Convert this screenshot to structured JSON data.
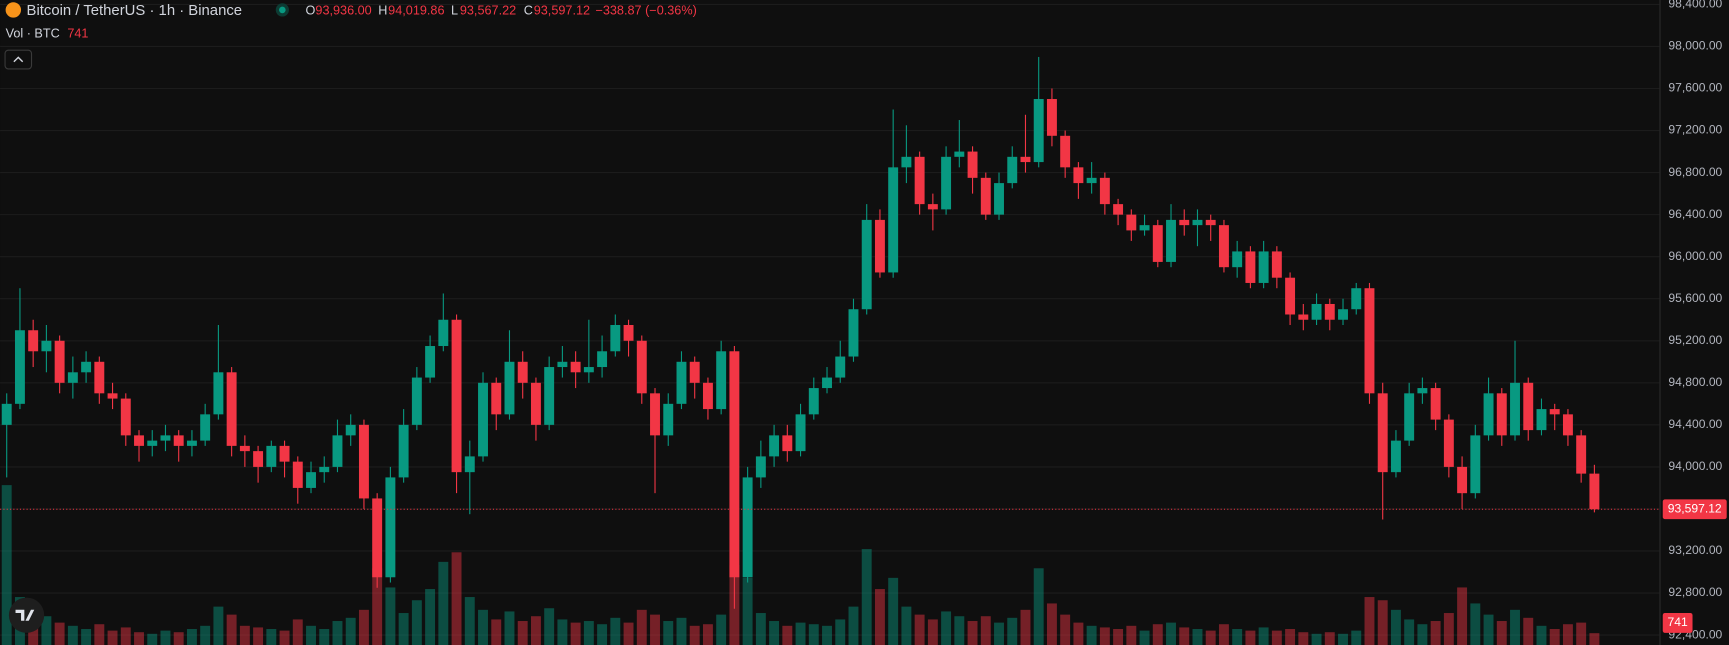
{
  "header": {
    "symbol": "Bitcoin / TetherUS · 1h · Binance",
    "ohlc": [
      {
        "key": "O",
        "value": "93,936.00"
      },
      {
        "key": "H",
        "value": "94,019.86"
      },
      {
        "key": "L",
        "value": "93,567.22"
      },
      {
        "key": "C",
        "value": "93,597.12"
      }
    ],
    "change": "−338.87 (−0.36%)",
    "volume_label": "Vol · BTC",
    "volume_value": "741"
  },
  "chart_data": {
    "type": "candlestick",
    "up_color": "#089981",
    "down_color": "#f23645",
    "grid": true,
    "ylim": [
      92400,
      98400
    ],
    "yticks": [
      {
        "value": 98400,
        "label": "98,400.00"
      },
      {
        "value": 98000,
        "label": "98,000.00"
      },
      {
        "value": 97600,
        "label": "97,600.00"
      },
      {
        "value": 97200,
        "label": "97,200.00"
      },
      {
        "value": 96800,
        "label": "96,800.00"
      },
      {
        "value": 96400,
        "label": "96,400.00"
      },
      {
        "value": 96000,
        "label": "96,000.00"
      },
      {
        "value": 95600,
        "label": "95,600.00"
      },
      {
        "value": 95200,
        "label": "95,200.00"
      },
      {
        "value": 94800,
        "label": "94,800.00"
      },
      {
        "value": 94400,
        "label": "94,400.00"
      },
      {
        "value": 94000,
        "label": "94,000.00"
      },
      {
        "value": 93600,
        "label": "93,600.00"
      },
      {
        "value": 93200,
        "label": "93,200.00"
      },
      {
        "value": 92800,
        "label": "92,800.00"
      },
      {
        "value": 92400,
        "label": "92,400.00"
      }
    ],
    "last_price_label": "93,597.12",
    "open": [
      94400,
      94600,
      95300,
      95100,
      95200,
      94800,
      94900,
      95000,
      94700,
      94650,
      94300,
      94200,
      94250,
      94300,
      94200,
      94250,
      94500,
      94900,
      94200,
      94150,
      94000,
      94200,
      94050,
      93800,
      93950,
      94000,
      94300,
      94400,
      93700,
      92950,
      93900,
      94400,
      94850,
      95150,
      95400,
      93950,
      94100,
      94800,
      94500,
      95000,
      94800,
      94400,
      94950,
      95000,
      94900,
      94950,
      95100,
      95350,
      95200,
      94700,
      94300,
      94600,
      95000,
      94800,
      94550,
      95100,
      92950,
      93900,
      94100,
      94300,
      94150,
      94500,
      94750,
      94850,
      95050,
      95500,
      96350,
      95850,
      96850,
      96950,
      96500,
      96450,
      96950,
      97000,
      96750,
      96400,
      96700,
      96950,
      96900,
      97500,
      97150,
      96850,
      96700,
      96750,
      96500,
      96400,
      96250,
      96300,
      95950,
      96350,
      96300,
      96350,
      96300,
      95900,
      96050,
      95750,
      96050,
      95800,
      95450,
      95400,
      95550,
      95400,
      95500,
      95700,
      94700,
      93950,
      94250,
      94700,
      94750,
      94450,
      94000,
      93750,
      94300,
      94700,
      94300,
      94800,
      94350,
      94550,
      94500,
      94300,
      93936
    ],
    "high": [
      94700,
      95700,
      95400,
      95350,
      95250,
      95050,
      95100,
      95050,
      94800,
      94700,
      94350,
      94350,
      94400,
      94350,
      94350,
      94600,
      95350,
      94950,
      94300,
      94200,
      94250,
      94250,
      94100,
      94050,
      94100,
      94450,
      94500,
      94450,
      93750,
      94000,
      94550,
      94950,
      95250,
      95650,
      95450,
      94250,
      94900,
      94850,
      95300,
      95100,
      94850,
      95050,
      95150,
      95100,
      95400,
      95250,
      95450,
      95400,
      95250,
      94750,
      94700,
      95100,
      95050,
      94850,
      95200,
      95150,
      94000,
      94250,
      94400,
      94400,
      94600,
      94850,
      94950,
      95200,
      95600,
      96500,
      96450,
      97400,
      97250,
      97000,
      96600,
      97050,
      97300,
      97050,
      96800,
      96800,
      97050,
      97350,
      97900,
      97600,
      97200,
      96900,
      96900,
      96800,
      96550,
      96450,
      96400,
      96350,
      96500,
      96450,
      96450,
      96400,
      96350,
      96150,
      96100,
      96150,
      96100,
      95850,
      95550,
      95650,
      95600,
      95600,
      95750,
      95750,
      94800,
      94350,
      94800,
      94850,
      94800,
      94500,
      94100,
      94400,
      94850,
      94750,
      95200,
      94850,
      94650,
      94600,
      94550,
      94350,
      94019.86
    ],
    "low": [
      93900,
      94550,
      94950,
      94900,
      94700,
      94650,
      94800,
      94600,
      94550,
      94200,
      94050,
      94100,
      94150,
      94050,
      94100,
      94200,
      94450,
      94100,
      94000,
      93850,
      93950,
      93900,
      93650,
      93750,
      93850,
      93950,
      94200,
      93600,
      92850,
      92900,
      93850,
      94350,
      94800,
      95100,
      93750,
      93550,
      94050,
      94350,
      94450,
      94650,
      94250,
      94350,
      94850,
      94750,
      94800,
      94850,
      95050,
      95050,
      94600,
      93750,
      94200,
      94550,
      94650,
      94450,
      94500,
      92650,
      92900,
      93800,
      94000,
      94050,
      94100,
      94450,
      94700,
      94800,
      95000,
      95450,
      95800,
      95800,
      96700,
      96400,
      96250,
      96400,
      96850,
      96600,
      96350,
      96350,
      96650,
      96800,
      96850,
      97050,
      96750,
      96550,
      96600,
      96400,
      96300,
      96150,
      96200,
      95900,
      95900,
      96200,
      96100,
      96150,
      95850,
      95800,
      95700,
      95700,
      95700,
      95350,
      95300,
      95350,
      95300,
      95350,
      95450,
      94600,
      93500,
      93900,
      94200,
      94600,
      94350,
      93900,
      93600,
      93700,
      94250,
      94200,
      94250,
      94250,
      94300,
      94350,
      94200,
      93850,
      93567.22
    ],
    "close": [
      94600,
      95300,
      95100,
      95200,
      94800,
      94900,
      95000,
      94700,
      94650,
      94300,
      94200,
      94250,
      94300,
      94200,
      94250,
      94500,
      94900,
      94200,
      94150,
      94000,
      94200,
      94050,
      93800,
      93950,
      94000,
      94300,
      94400,
      93700,
      92950,
      93900,
      94400,
      94850,
      95150,
      95400,
      93950,
      94100,
      94800,
      94500,
      95000,
      94800,
      94400,
      94950,
      95000,
      94900,
      94950,
      95100,
      95350,
      95200,
      94700,
      94300,
      94600,
      95000,
      94800,
      94550,
      95100,
      92950,
      93900,
      94100,
      94300,
      94150,
      94500,
      94750,
      94850,
      95050,
      95500,
      96350,
      95850,
      96850,
      96950,
      96500,
      96450,
      96950,
      97000,
      96750,
      96400,
      96700,
      96950,
      96900,
      97500,
      97150,
      96850,
      96700,
      96750,
      96500,
      96400,
      96250,
      96300,
      95950,
      96350,
      96300,
      96350,
      96300,
      95900,
      96050,
      95750,
      96050,
      95800,
      95450,
      95400,
      95550,
      95400,
      95500,
      95700,
      94700,
      93950,
      94250,
      94700,
      94750,
      94450,
      94000,
      93750,
      94300,
      94700,
      94300,
      94800,
      94350,
      94550,
      94500,
      94300,
      93936,
      93597.12
    ],
    "volume": [
      10000,
      3000,
      1500,
      1800,
      1400,
      1200,
      1000,
      1300,
      900,
      1100,
      800,
      700,
      900,
      800,
      1000,
      1200,
      2400,
      1900,
      1200,
      1100,
      1000,
      900,
      1600,
      1200,
      1000,
      1500,
      1700,
      2200,
      4800,
      3600,
      2000,
      2800,
      3500,
      5200,
      5800,
      3000,
      2200,
      1600,
      2100,
      1500,
      1800,
      2300,
      1600,
      1400,
      1500,
      1300,
      1700,
      1400,
      2200,
      1900,
      1500,
      1700,
      1200,
      1300,
      1900,
      5000,
      4200,
      2000,
      1500,
      1200,
      1400,
      1300,
      1200,
      1600,
      2400,
      6000,
      3500,
      4200,
      2400,
      1900,
      1600,
      2100,
      1800,
      1500,
      1800,
      1400,
      1700,
      2200,
      4800,
      2600,
      1900,
      1400,
      1200,
      1100,
      1000,
      1200,
      900,
      1300,
      1400,
      1100,
      1000,
      900,
      1300,
      1000,
      900,
      1100,
      900,
      1000,
      800,
      700,
      800,
      700,
      900,
      3000,
      2800,
      2200,
      1600,
      1300,
      1500,
      2000,
      3600,
      2600,
      1900,
      1500,
      2200,
      1700,
      1200,
      1000,
      1300,
      1400,
      741
    ]
  }
}
